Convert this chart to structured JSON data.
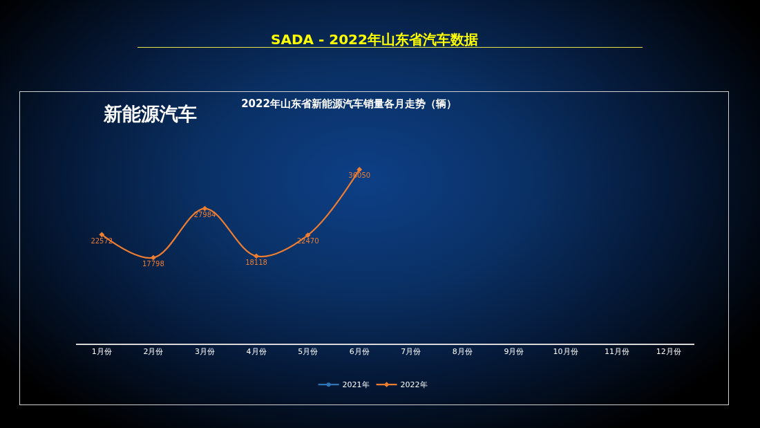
{
  "chart_data": {
    "type": "line",
    "title": "2022年山东省新能源汽车销量各月走势（辆）",
    "annotations": [
      "SADA - 2022年山东省汽车数据",
      "新能源汽车"
    ],
    "categories": [
      "1月份",
      "2月份",
      "3月份",
      "4月份",
      "5月份",
      "6月份",
      "7月份",
      "8月份",
      "9月份",
      "10月份",
      "11月份",
      "12月份"
    ],
    "series": [
      {
        "name": "2021年",
        "color": "#2e75b6",
        "marker": "circle",
        "values": [
          null,
          null,
          null,
          null,
          null,
          null,
          null,
          null,
          null,
          null,
          null,
          null
        ]
      },
      {
        "name": "2022年",
        "color": "#ed7d31",
        "marker": "diamond",
        "values": [
          22572,
          17798,
          27984,
          18118,
          22470,
          36050,
          null,
          null,
          null,
          null,
          null,
          null
        ]
      }
    ],
    "data_labels": true,
    "grid": false,
    "legend": "bottom",
    "tick_labels": "x"
  }
}
